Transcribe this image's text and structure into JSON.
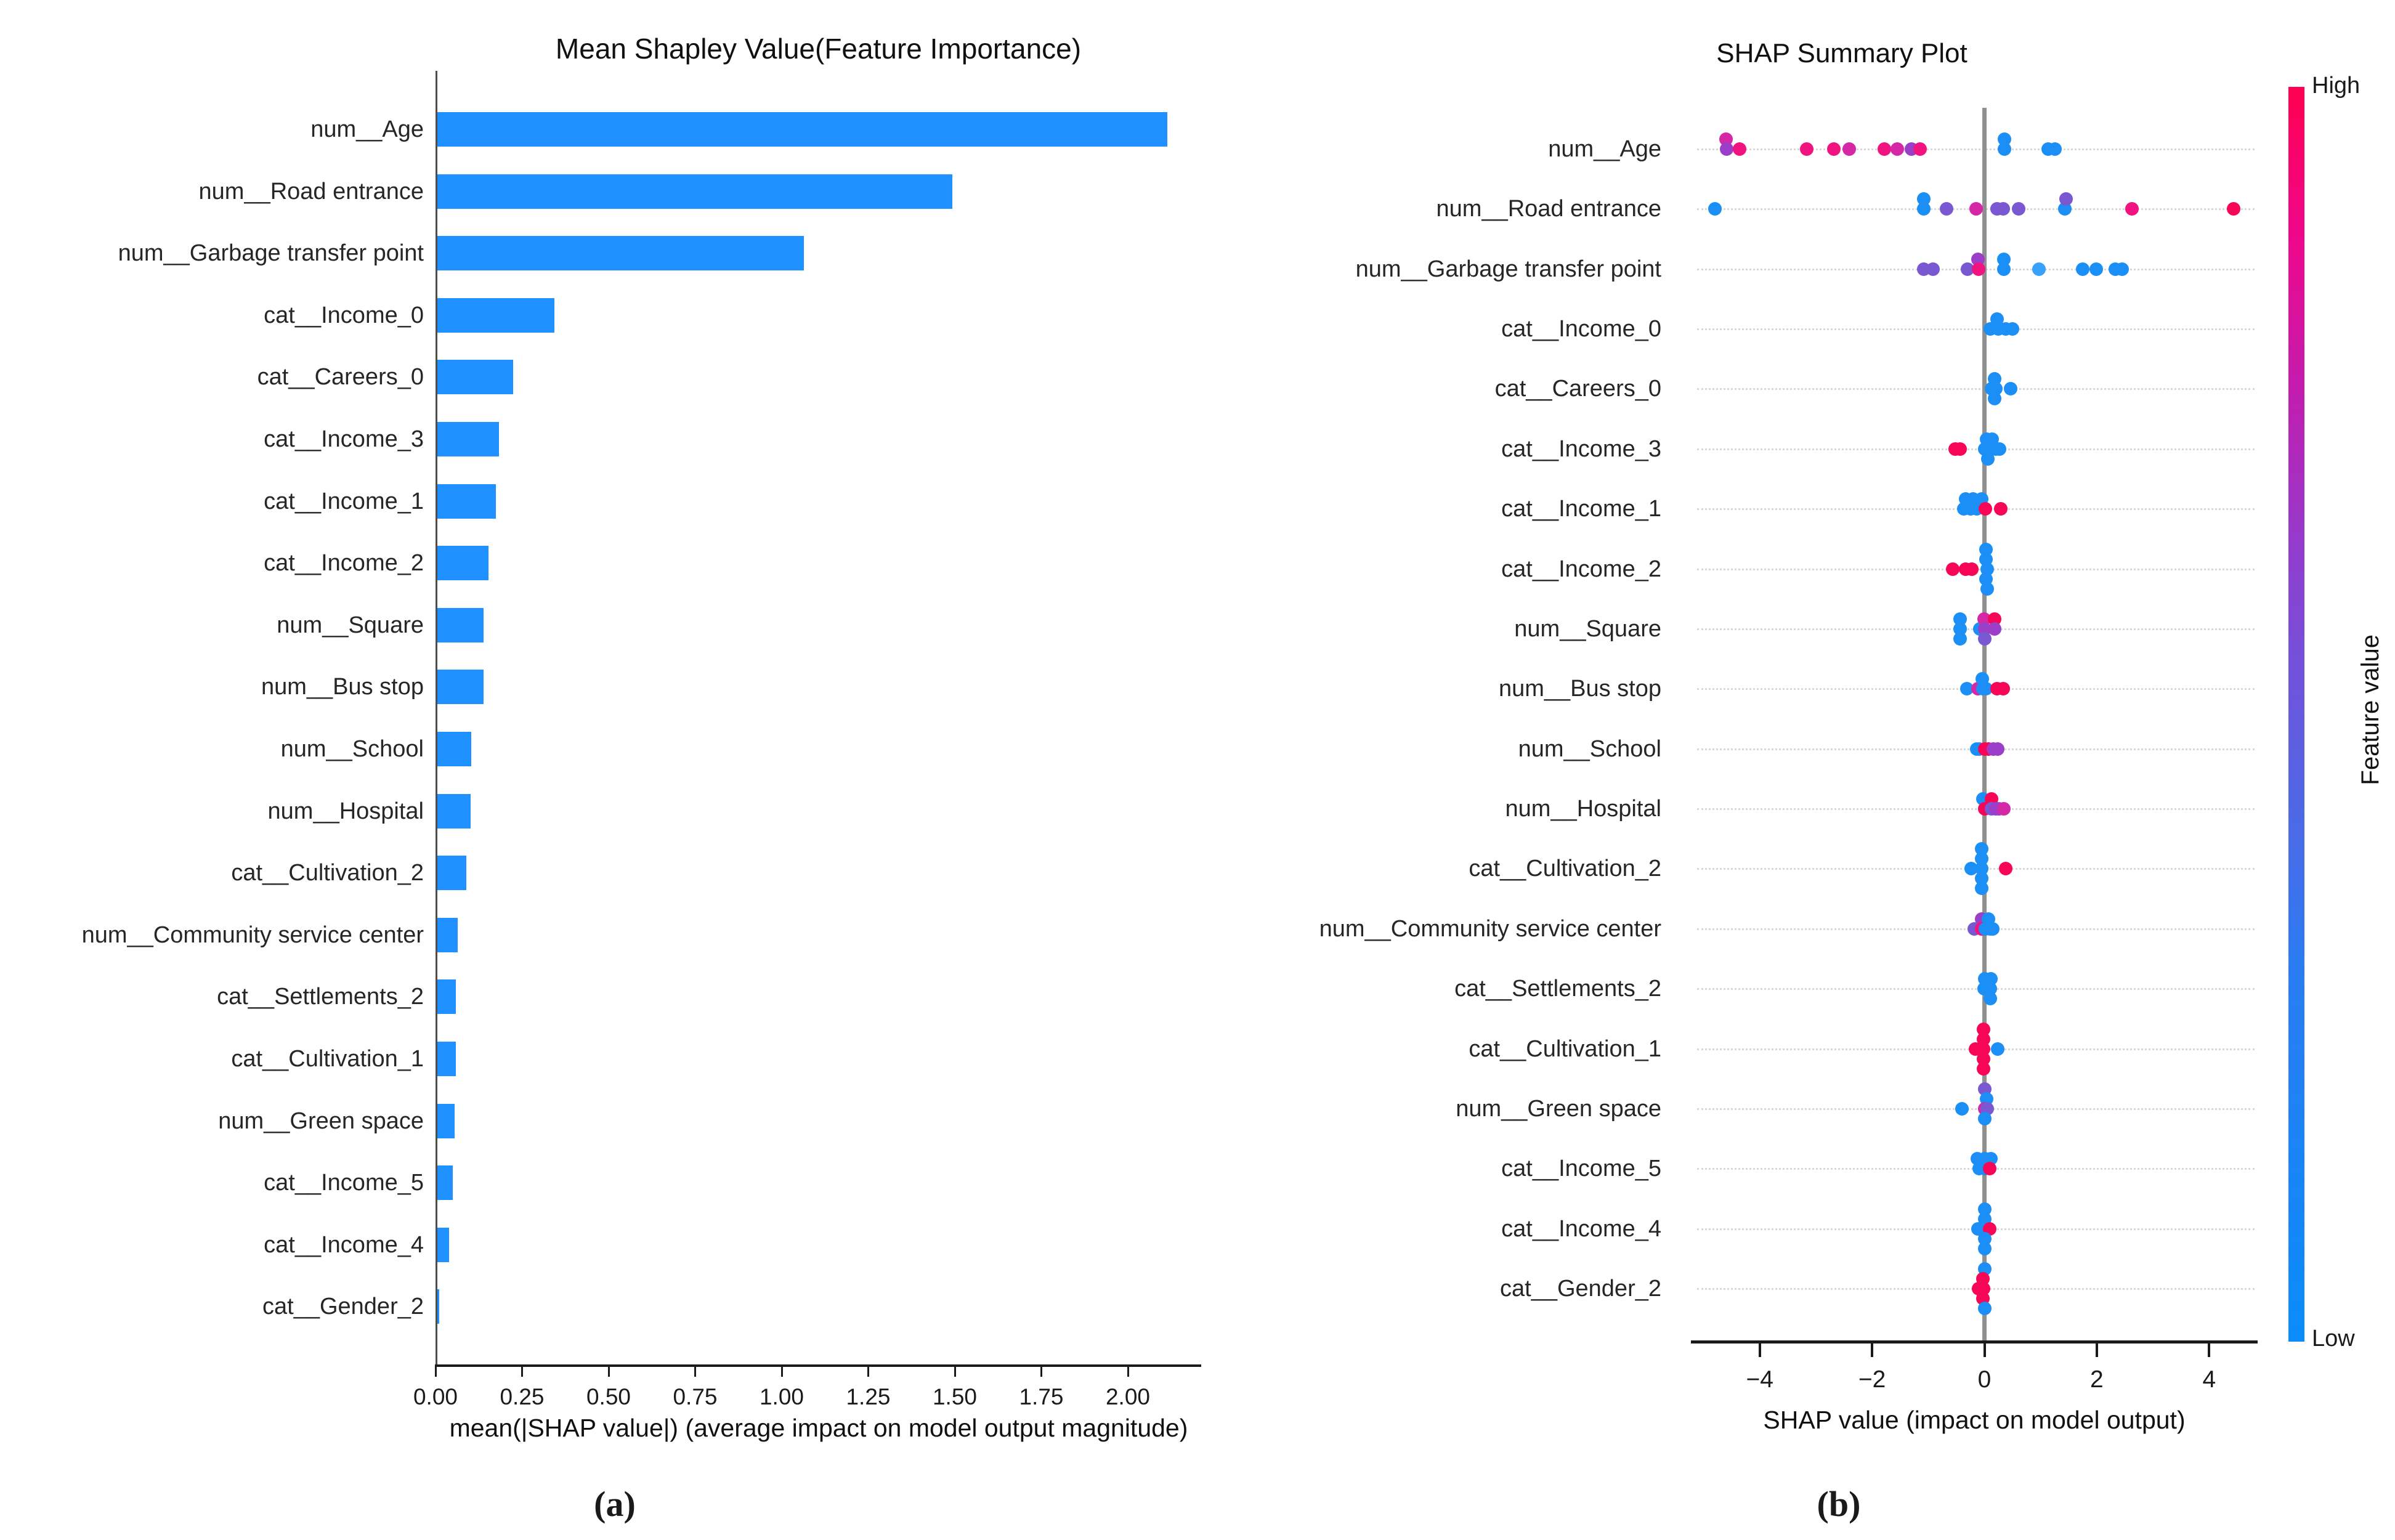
{
  "palette": {
    "b": "#1b8ff5",
    "lb": "#37a1fb",
    "p": "#7a58d2",
    "v": "#9c3fc8",
    "m": "#d428a6",
    "pk": "#f01380",
    "r": "#f70658"
  },
  "panel_a": {
    "caption": "(a)"
  },
  "panel_b": {
    "caption": "(b)"
  },
  "chart_data": [
    {
      "panel": "a",
      "type": "bar",
      "orientation": "horizontal",
      "title": "Mean Shapley Value(Feature Importance)",
      "xlabel": "mean(|SHAP value|) (average impact on model output magnitude)",
      "bar_color": "#1e90ff",
      "xlim": [
        0,
        2.2
      ],
      "xticks": [
        "0.00",
        "0.25",
        "0.50",
        "0.75",
        "1.00",
        "1.25",
        "1.50",
        "1.75",
        "2.00"
      ],
      "xtick_values": [
        0,
        0.25,
        0.5,
        0.75,
        1.0,
        1.25,
        1.5,
        1.75,
        2.0
      ],
      "categories": [
        "num__Age",
        "num__Road entrance",
        "num__Garbage transfer point",
        "cat__Income_0",
        "cat__Careers_0",
        "cat__Income_3",
        "cat__Income_1",
        "cat__Income_2",
        "num__Square",
        "num__Bus stop",
        "num__School",
        "num__Hospital",
        "cat__Cultivation_2",
        "num__Community service center",
        "cat__Settlements_2",
        "cat__Cultivation_1",
        "num__Green space",
        "cat__Income_5",
        "cat__Income_4",
        "cat__Gender_2"
      ],
      "values": [
        2.11,
        1.49,
        1.06,
        0.34,
        0.22,
        0.18,
        0.17,
        0.15,
        0.135,
        0.135,
        0.1,
        0.098,
        0.085,
        0.06,
        0.055,
        0.055,
        0.052,
        0.046,
        0.035,
        0.008
      ]
    },
    {
      "panel": "b",
      "type": "scatter",
      "subtype": "shap-beeswarm",
      "title": "SHAP Summary Plot",
      "xlabel": "SHAP value (impact on model output)",
      "xlim": [
        -5.3,
        4.9
      ],
      "xticks": [
        "−4",
        "−2",
        "0",
        "2",
        "4"
      ],
      "xtick_values": [
        -4,
        -2,
        0,
        2,
        4
      ],
      "colorbar": {
        "high": "High",
        "low": "Low",
        "label": "Feature value"
      },
      "rows": [
        {
          "feature": "num__Age",
          "points": [
            [
              -4.6,
              "m",
              -1
            ],
            [
              -4.59,
              "v",
              0
            ],
            [
              -4.36,
              "pk",
              0
            ],
            [
              -3.16,
              "pk",
              0
            ],
            [
              -2.68,
              "pk",
              0
            ],
            [
              -2.41,
              "m",
              0
            ],
            [
              -1.78,
              "pk",
              0
            ],
            [
              -1.55,
              "m",
              0
            ],
            [
              -1.3,
              "v",
              0
            ],
            [
              -1.15,
              "pk",
              0
            ],
            [
              0.36,
              "b",
              -1
            ],
            [
              0.36,
              "b",
              0
            ],
            [
              1.14,
              "b",
              0
            ],
            [
              1.26,
              "b",
              0
            ]
          ]
        },
        {
          "feature": "num__Road entrance",
          "points": [
            [
              -4.8,
              "b",
              0
            ],
            [
              -1.08,
              "b",
              -1
            ],
            [
              -1.08,
              "b",
              0
            ],
            [
              -0.67,
              "p",
              0
            ],
            [
              -0.15,
              "m",
              0
            ],
            [
              0.22,
              "p",
              0
            ],
            [
              0.33,
              "p",
              0
            ],
            [
              0.61,
              "p",
              0
            ],
            [
              1.43,
              "b",
              0
            ],
            [
              1.45,
              "p",
              -1
            ],
            [
              2.63,
              "pk",
              0
            ],
            [
              4.43,
              "r",
              0
            ]
          ]
        },
        {
          "feature": "num__Garbage transfer point",
          "points": [
            [
              -1.08,
              "p",
              0
            ],
            [
              -0.92,
              "p",
              0
            ],
            [
              -0.3,
              "p",
              0
            ],
            [
              -0.12,
              "v",
              -1
            ],
            [
              -0.1,
              "pk",
              0
            ],
            [
              0.34,
              "b",
              -1
            ],
            [
              0.34,
              "b",
              0
            ],
            [
              0.97,
              "lb",
              0
            ],
            [
              1.75,
              "b",
              0
            ],
            [
              1.99,
              "b",
              0
            ],
            [
              2.33,
              "b",
              0
            ],
            [
              2.45,
              "b",
              0
            ]
          ]
        },
        {
          "feature": "cat__Income_0",
          "points": [
            [
              0.23,
              "b",
              -1
            ],
            [
              0.1,
              "b",
              0
            ],
            [
              0.25,
              "b",
              0
            ],
            [
              0.38,
              "b",
              0
            ],
            [
              0.5,
              "b",
              0
            ]
          ]
        },
        {
          "feature": "cat__Careers_0",
          "points": [
            [
              0.18,
              "b",
              -1
            ],
            [
              0.13,
              "b",
              0
            ],
            [
              0.2,
              "b",
              0
            ],
            [
              0.47,
              "b",
              0
            ],
            [
              0.18,
              "b",
              1
            ]
          ]
        },
        {
          "feature": "cat__Income_3",
          "points": [
            [
              -0.52,
              "r",
              0
            ],
            [
              -0.43,
              "r",
              0
            ],
            [
              0.04,
              "b",
              -1
            ],
            [
              0.14,
              "b",
              -1
            ],
            [
              0.0,
              "b",
              0
            ],
            [
              0.1,
              "b",
              0
            ],
            [
              0.2,
              "b",
              0
            ],
            [
              0.27,
              "b",
              0
            ],
            [
              0.06,
              "b",
              1
            ]
          ]
        },
        {
          "feature": "cat__Income_1",
          "points": [
            [
              -0.33,
              "b",
              -1
            ],
            [
              -0.2,
              "b",
              -1
            ],
            [
              -0.05,
              "b",
              -1
            ],
            [
              -0.37,
              "b",
              0
            ],
            [
              -0.25,
              "b",
              0
            ],
            [
              -0.14,
              "b",
              0
            ],
            [
              0.02,
              "r",
              0
            ],
            [
              0.29,
              "r",
              0
            ]
          ]
        },
        {
          "feature": "cat__Income_2",
          "points": [
            [
              -0.57,
              "r",
              0
            ],
            [
              -0.33,
              "r",
              0
            ],
            [
              -0.23,
              "r",
              0
            ],
            [
              0.03,
              "b",
              -2
            ],
            [
              0.03,
              "b",
              -1
            ],
            [
              0.05,
              "b",
              0
            ],
            [
              0.03,
              "b",
              1
            ],
            [
              0.05,
              "b",
              2
            ]
          ]
        },
        {
          "feature": "num__Square",
          "points": [
            [
              -0.43,
              "b",
              -1
            ],
            [
              -0.43,
              "b",
              0
            ],
            [
              -0.43,
              "b",
              1
            ],
            [
              -0.08,
              "b",
              0
            ],
            [
              -0.01,
              "m",
              -1
            ],
            [
              0.18,
              "r",
              -1
            ],
            [
              0.0,
              "v",
              0
            ],
            [
              0.18,
              "v",
              0
            ],
            [
              0.0,
              "p",
              1
            ]
          ]
        },
        {
          "feature": "num__Bus stop",
          "points": [
            [
              -0.31,
              "b",
              0
            ],
            [
              -0.12,
              "m",
              0
            ],
            [
              -0.04,
              "b",
              -1
            ],
            [
              -0.03,
              "b",
              0
            ],
            [
              0.03,
              "b",
              0
            ],
            [
              0.22,
              "r",
              0
            ],
            [
              0.33,
              "r",
              0
            ]
          ]
        },
        {
          "feature": "num__School",
          "points": [
            [
              -0.14,
              "b",
              0
            ],
            [
              -0.09,
              "b",
              0
            ],
            [
              0.0,
              "r",
              0
            ],
            [
              0.07,
              "r",
              0
            ],
            [
              0.16,
              "v",
              0
            ],
            [
              0.24,
              "v",
              0
            ]
          ]
        },
        {
          "feature": "num__Hospital",
          "points": [
            [
              -0.03,
              "b",
              -1
            ],
            [
              0.13,
              "r",
              -1
            ],
            [
              0.0,
              "r",
              0
            ],
            [
              0.13,
              "p",
              0
            ],
            [
              0.2,
              "v",
              0
            ],
            [
              0.26,
              "v",
              0
            ],
            [
              0.35,
              "m",
              0
            ]
          ]
        },
        {
          "feature": "cat__Cultivation_2",
          "points": [
            [
              -0.24,
              "b",
              0
            ],
            [
              -0.05,
              "b",
              -2
            ],
            [
              -0.05,
              "b",
              -1
            ],
            [
              -0.05,
              "b",
              0
            ],
            [
              -0.05,
              "b",
              1
            ],
            [
              -0.05,
              "b",
              2
            ],
            [
              0.38,
              "r",
              0
            ]
          ]
        },
        {
          "feature": "num__Community service center",
          "points": [
            [
              -0.05,
              "v",
              -1
            ],
            [
              0.07,
              "b",
              -1
            ],
            [
              -0.18,
              "p",
              0
            ],
            [
              -0.05,
              "pk",
              0
            ],
            [
              0.02,
              "b",
              0
            ],
            [
              0.1,
              "b",
              0
            ],
            [
              0.15,
              "b",
              0
            ]
          ]
        },
        {
          "feature": "cat__Settlements_2",
          "points": [
            [
              0.0,
              "b",
              -1
            ],
            [
              0.11,
              "b",
              -1
            ],
            [
              -0.01,
              "b",
              0
            ],
            [
              0.1,
              "b",
              0
            ],
            [
              0.1,
              "b",
              1
            ]
          ]
        },
        {
          "feature": "cat__Cultivation_1",
          "points": [
            [
              -0.16,
              "r",
              0
            ],
            [
              -0.02,
              "r",
              -2
            ],
            [
              -0.02,
              "r",
              -1
            ],
            [
              -0.02,
              "r",
              0
            ],
            [
              -0.02,
              "r",
              1
            ],
            [
              -0.02,
              "r",
              2
            ],
            [
              0.24,
              "b",
              0
            ]
          ]
        },
        {
          "feature": "num__Green space",
          "points": [
            [
              -0.4,
              "b",
              0
            ],
            [
              0.0,
              "p",
              -2
            ],
            [
              0.04,
              "b",
              -1
            ],
            [
              0.0,
              "m",
              0
            ],
            [
              0.05,
              "p",
              0
            ],
            [
              0.0,
              "b",
              1
            ]
          ]
        },
        {
          "feature": "cat__Income_5",
          "points": [
            [
              -0.13,
              "b",
              -1
            ],
            [
              0.0,
              "b",
              -1
            ],
            [
              0.11,
              "b",
              -1
            ],
            [
              -0.09,
              "b",
              0
            ],
            [
              0.0,
              "b",
              0
            ],
            [
              0.09,
              "r",
              0
            ]
          ]
        },
        {
          "feature": "cat__Income_4",
          "points": [
            [
              0.0,
              "b",
              -2
            ],
            [
              0.0,
              "b",
              -1
            ],
            [
              -0.11,
              "b",
              0
            ],
            [
              0.0,
              "b",
              0
            ],
            [
              0.09,
              "r",
              0
            ],
            [
              0.0,
              "b",
              1
            ],
            [
              0.0,
              "b",
              2
            ]
          ]
        },
        {
          "feature": "cat__Gender_2",
          "points": [
            [
              0.0,
              "b",
              -2
            ],
            [
              -0.03,
              "r",
              -1
            ],
            [
              -0.1,
              "r",
              0
            ],
            [
              -0.02,
              "r",
              0
            ],
            [
              -0.03,
              "r",
              1
            ],
            [
              0.0,
              "b",
              2
            ]
          ]
        }
      ]
    }
  ]
}
